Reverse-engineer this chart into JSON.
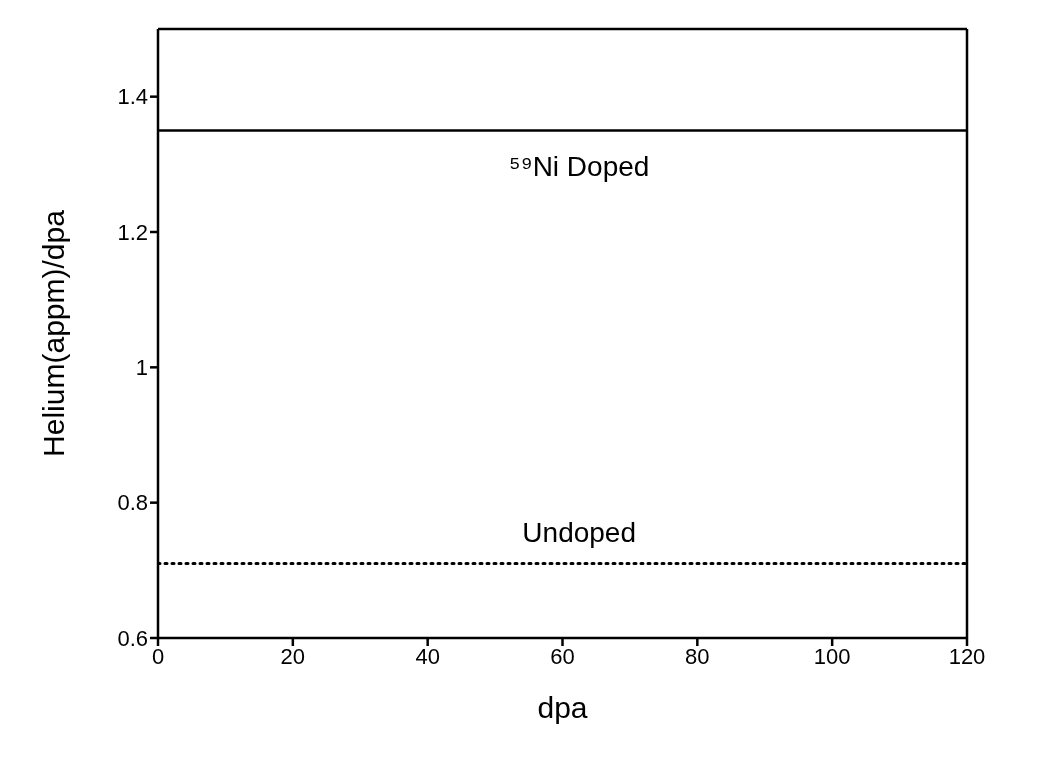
{
  "chart_data": {
    "type": "line",
    "xlabel": "dpa",
    "ylabel": "Helium(appm)/dpa",
    "x": [
      0,
      120
    ],
    "series": [
      {
        "name": "⁵⁹Ni Doped",
        "color": "#000000",
        "values": [
          1.35,
          1.35
        ],
        "line_style": "solid"
      },
      {
        "name": "Undoped",
        "color": "#000000",
        "values": [
          0.71,
          0.71
        ],
        "line_style": "dotted"
      }
    ],
    "xlim": [
      0,
      120
    ],
    "xticks": [
      0,
      20,
      40,
      60,
      80,
      100,
      120
    ],
    "ylim": [
      0.6,
      1.5
    ],
    "yticks": [
      0.6,
      0.8,
      1,
      1.2,
      1.4
    ],
    "grid": false,
    "legend": false,
    "marker": "none"
  }
}
